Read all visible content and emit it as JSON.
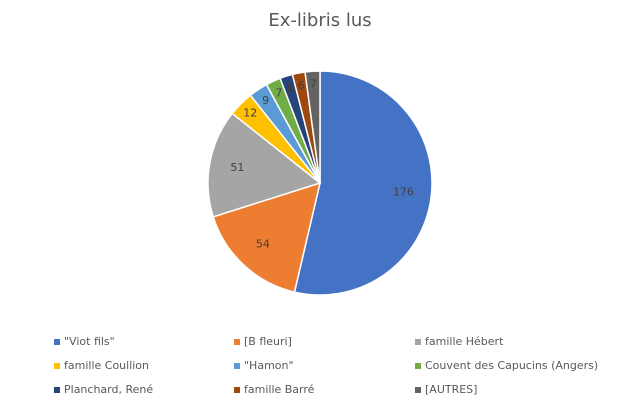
{
  "chart_data": {
    "type": "pie",
    "title": "Ex-libris lus",
    "categories": [
      "\"Viot fils\"",
      "[B fleuri]",
      "famille Hébert",
      "famille Coullion",
      "\"Hamon\"",
      "Couvent des Capucins (Angers)",
      "Planchard, René",
      "famille Barré",
      "[AUTRES]"
    ],
    "values": [
      176,
      54,
      51,
      12,
      9,
      7,
      6,
      6,
      7
    ],
    "colors": [
      "#4472c4",
      "#ed7d31",
      "#a5a5a5",
      "#ffc000",
      "#5b9bd5",
      "#70ad47",
      "#264478",
      "#9e480e",
      "#636363"
    ],
    "legend": "bottom"
  }
}
